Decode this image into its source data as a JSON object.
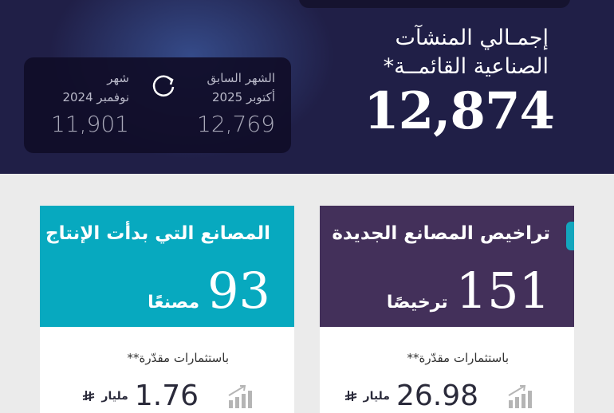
{
  "hero": {
    "title_line1": "إجمـالي المنشآت",
    "title_line2": "الصناعية القائمــة*",
    "total": "12,874",
    "previous_month": {
      "label": "الشهر السابق",
      "period": "أكتوبر 2025",
      "value": "12,769"
    },
    "same_month_last_year": {
      "label": "شهر",
      "period": "نوفمبر 2024",
      "value": "11,901"
    },
    "refresh_icon": "refresh-icon"
  },
  "cards": [
    {
      "title": "تراخيص المصانع الجديدة",
      "value": "151",
      "unit": "ترخيصًا",
      "investment_label": "باستثمارات مقدّرة**",
      "investment_value": "26.98",
      "investment_unit": "مليار",
      "header_color": "#43305a"
    },
    {
      "title": "المصانع التي بدأت الإنتاج",
      "value": "93",
      "unit": "مصنعًا",
      "investment_label": "باستثمارات مقدّرة**",
      "investment_value": "1.76",
      "investment_unit": "مليار",
      "header_color": "#07a9bf"
    }
  ],
  "icons": {
    "growth": "bar-chart-growth-icon",
    "currency": "saudi-riyal-icon"
  }
}
